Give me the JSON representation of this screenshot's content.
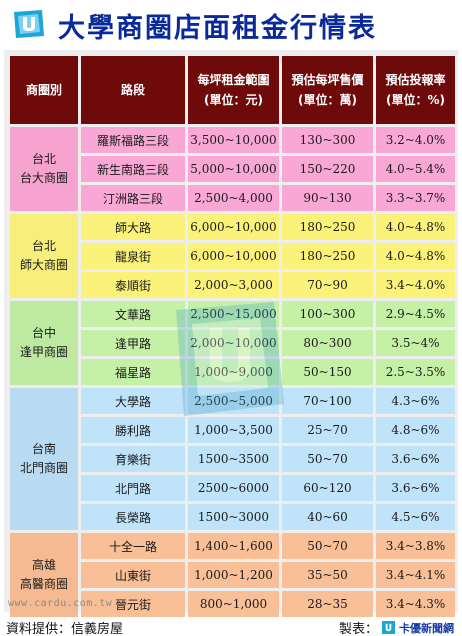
{
  "title": "大學商圈店面租金行情表",
  "headers": {
    "area": "商圈別",
    "road": "路段",
    "rent": [
      "每坪租金範圍",
      "(單位：元)"
    ],
    "price": [
      "預估每坪售價",
      "(單位：萬)"
    ],
    "roi": [
      "預估投報率",
      "(單位：%)"
    ]
  },
  "groups": [
    {
      "area": [
        "台北",
        "台大商圈"
      ],
      "color": "pink",
      "rows": [
        {
          "road": "羅斯福路三段",
          "rent": "3,500~10,000",
          "price": "130~300",
          "roi": "3.2~4.0%"
        },
        {
          "road": "新生南路三段",
          "rent": "5,000~10,000",
          "price": "150~220",
          "roi": "4.0~5.4%"
        },
        {
          "road": "汀洲路三段",
          "rent": "2,500~4,000",
          "price": "90~130",
          "roi": "3.3~3.7%"
        }
      ]
    },
    {
      "area": [
        "台北",
        "師大商圈"
      ],
      "color": "yellow",
      "rows": [
        {
          "road": "師大路",
          "rent": "6,000~10,000",
          "price": "180~250",
          "roi": "4.0~4.8%"
        },
        {
          "road": "龍泉街",
          "rent": "6,000~10,000",
          "price": "180~250",
          "roi": "4.0~4.8%"
        },
        {
          "road": "泰順街",
          "rent": "2,000~3,000",
          "price": "70~90",
          "roi": "3.4~4.0%"
        }
      ]
    },
    {
      "area": [
        "台中",
        "逢甲商圈"
      ],
      "color": "green",
      "rows": [
        {
          "road": "文華路",
          "rent": "2,500~15,000",
          "price": "100~300",
          "roi": "2.9~4.5%"
        },
        {
          "road": "逢甲路",
          "rent": "2,000~10,000",
          "price": "80~300",
          "roi": "3.5~4%"
        },
        {
          "road": "福星路",
          "rent": "1,000~9,000",
          "price": "50~150",
          "roi": "2.5~3.5%"
        }
      ]
    },
    {
      "area": [
        "台南",
        "北門商圈"
      ],
      "color": "blue",
      "rows": [
        {
          "road": "大學路",
          "rent": "2,500~5,000",
          "price": "70~100",
          "roi": "4.3~6%"
        },
        {
          "road": "勝利路",
          "rent": "1,000~3,500",
          "price": "25~70",
          "roi": "4.8~6%"
        },
        {
          "road": "育樂街",
          "rent": "1500~3500",
          "price": "50~70",
          "roi": "3.6~6%"
        },
        {
          "road": "北門路",
          "rent": "2500~6000",
          "price": "60~120",
          "roi": "3.6~6%"
        },
        {
          "road": "長榮路",
          "rent": "1500~3000",
          "price": "40~60",
          "roi": "4.5~6%"
        }
      ]
    },
    {
      "area": [
        "高雄",
        "高醫商圈"
      ],
      "color": "orange",
      "rows": [
        {
          "road": "十全一路",
          "rent": "1,400~1,600",
          "price": "50~70",
          "roi": "3.4~3.8%"
        },
        {
          "road": "山東街",
          "rent": "1,000~1,200",
          "price": "35~50",
          "roi": "3.4~4.1%"
        },
        {
          "road": "晉元街",
          "rent": "800~1,000",
          "price": "28~35",
          "roi": "3.4~4.3%"
        }
      ]
    }
  ],
  "watermark": "www.cardu.com.tw",
  "footer": {
    "source": "資料提供：信義房屋",
    "credit_label": "製表：",
    "credit_name": "卡優新聞網"
  },
  "colors": {
    "title": "#0a2a9c",
    "header_bg": "#6e0a0a",
    "pink": "#f9a8d6",
    "yellow": "#fbf27a",
    "green": "#c5f1a6",
    "blue": "#bfe3f9",
    "orange": "#f9c098"
  },
  "icons": {
    "logo": "cardu-logo-icon",
    "credit": "cardu-small-logo-icon"
  }
}
